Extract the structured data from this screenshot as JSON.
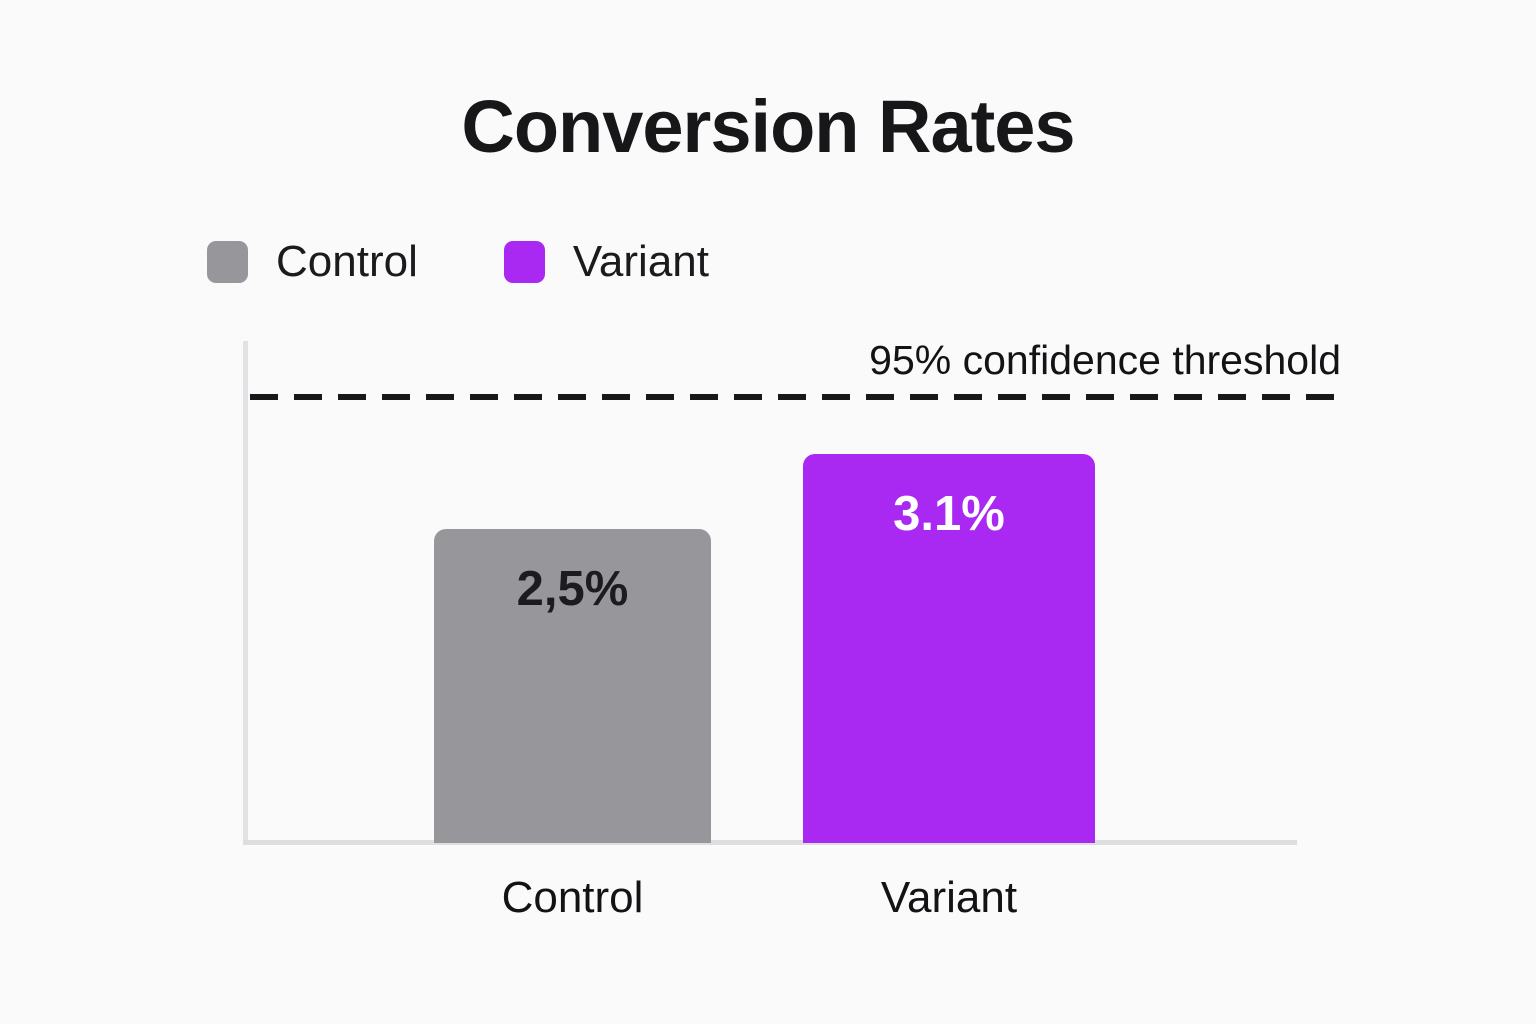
{
  "chart_data": {
    "type": "bar",
    "title": "Conversion Rates",
    "categories": [
      "Control",
      "Variant"
    ],
    "values": [
      2.5,
      3.1
    ],
    "value_labels": [
      "2,5%",
      "3.1%"
    ],
    "legend": [
      {
        "label": "Control",
        "color": "#97969b"
      },
      {
        "label": "Variant",
        "color": "#a928f2"
      }
    ],
    "legend_position": "top-left",
    "annotations": [
      {
        "type": "dashed-threshold-line",
        "label": "95% confidence threshold",
        "approx_value": 3.55
      }
    ],
    "xlabel": "",
    "ylabel": "",
    "ylim": [
      0,
      4
    ],
    "grid": false,
    "colors": {
      "background": "#fafafa",
      "axis": "#e0e0e2",
      "threshold_line": "#18181b",
      "title_text": "#17171a",
      "bar_label_dark": "#1c1c20",
      "bar_label_light": "#ffffff"
    }
  }
}
